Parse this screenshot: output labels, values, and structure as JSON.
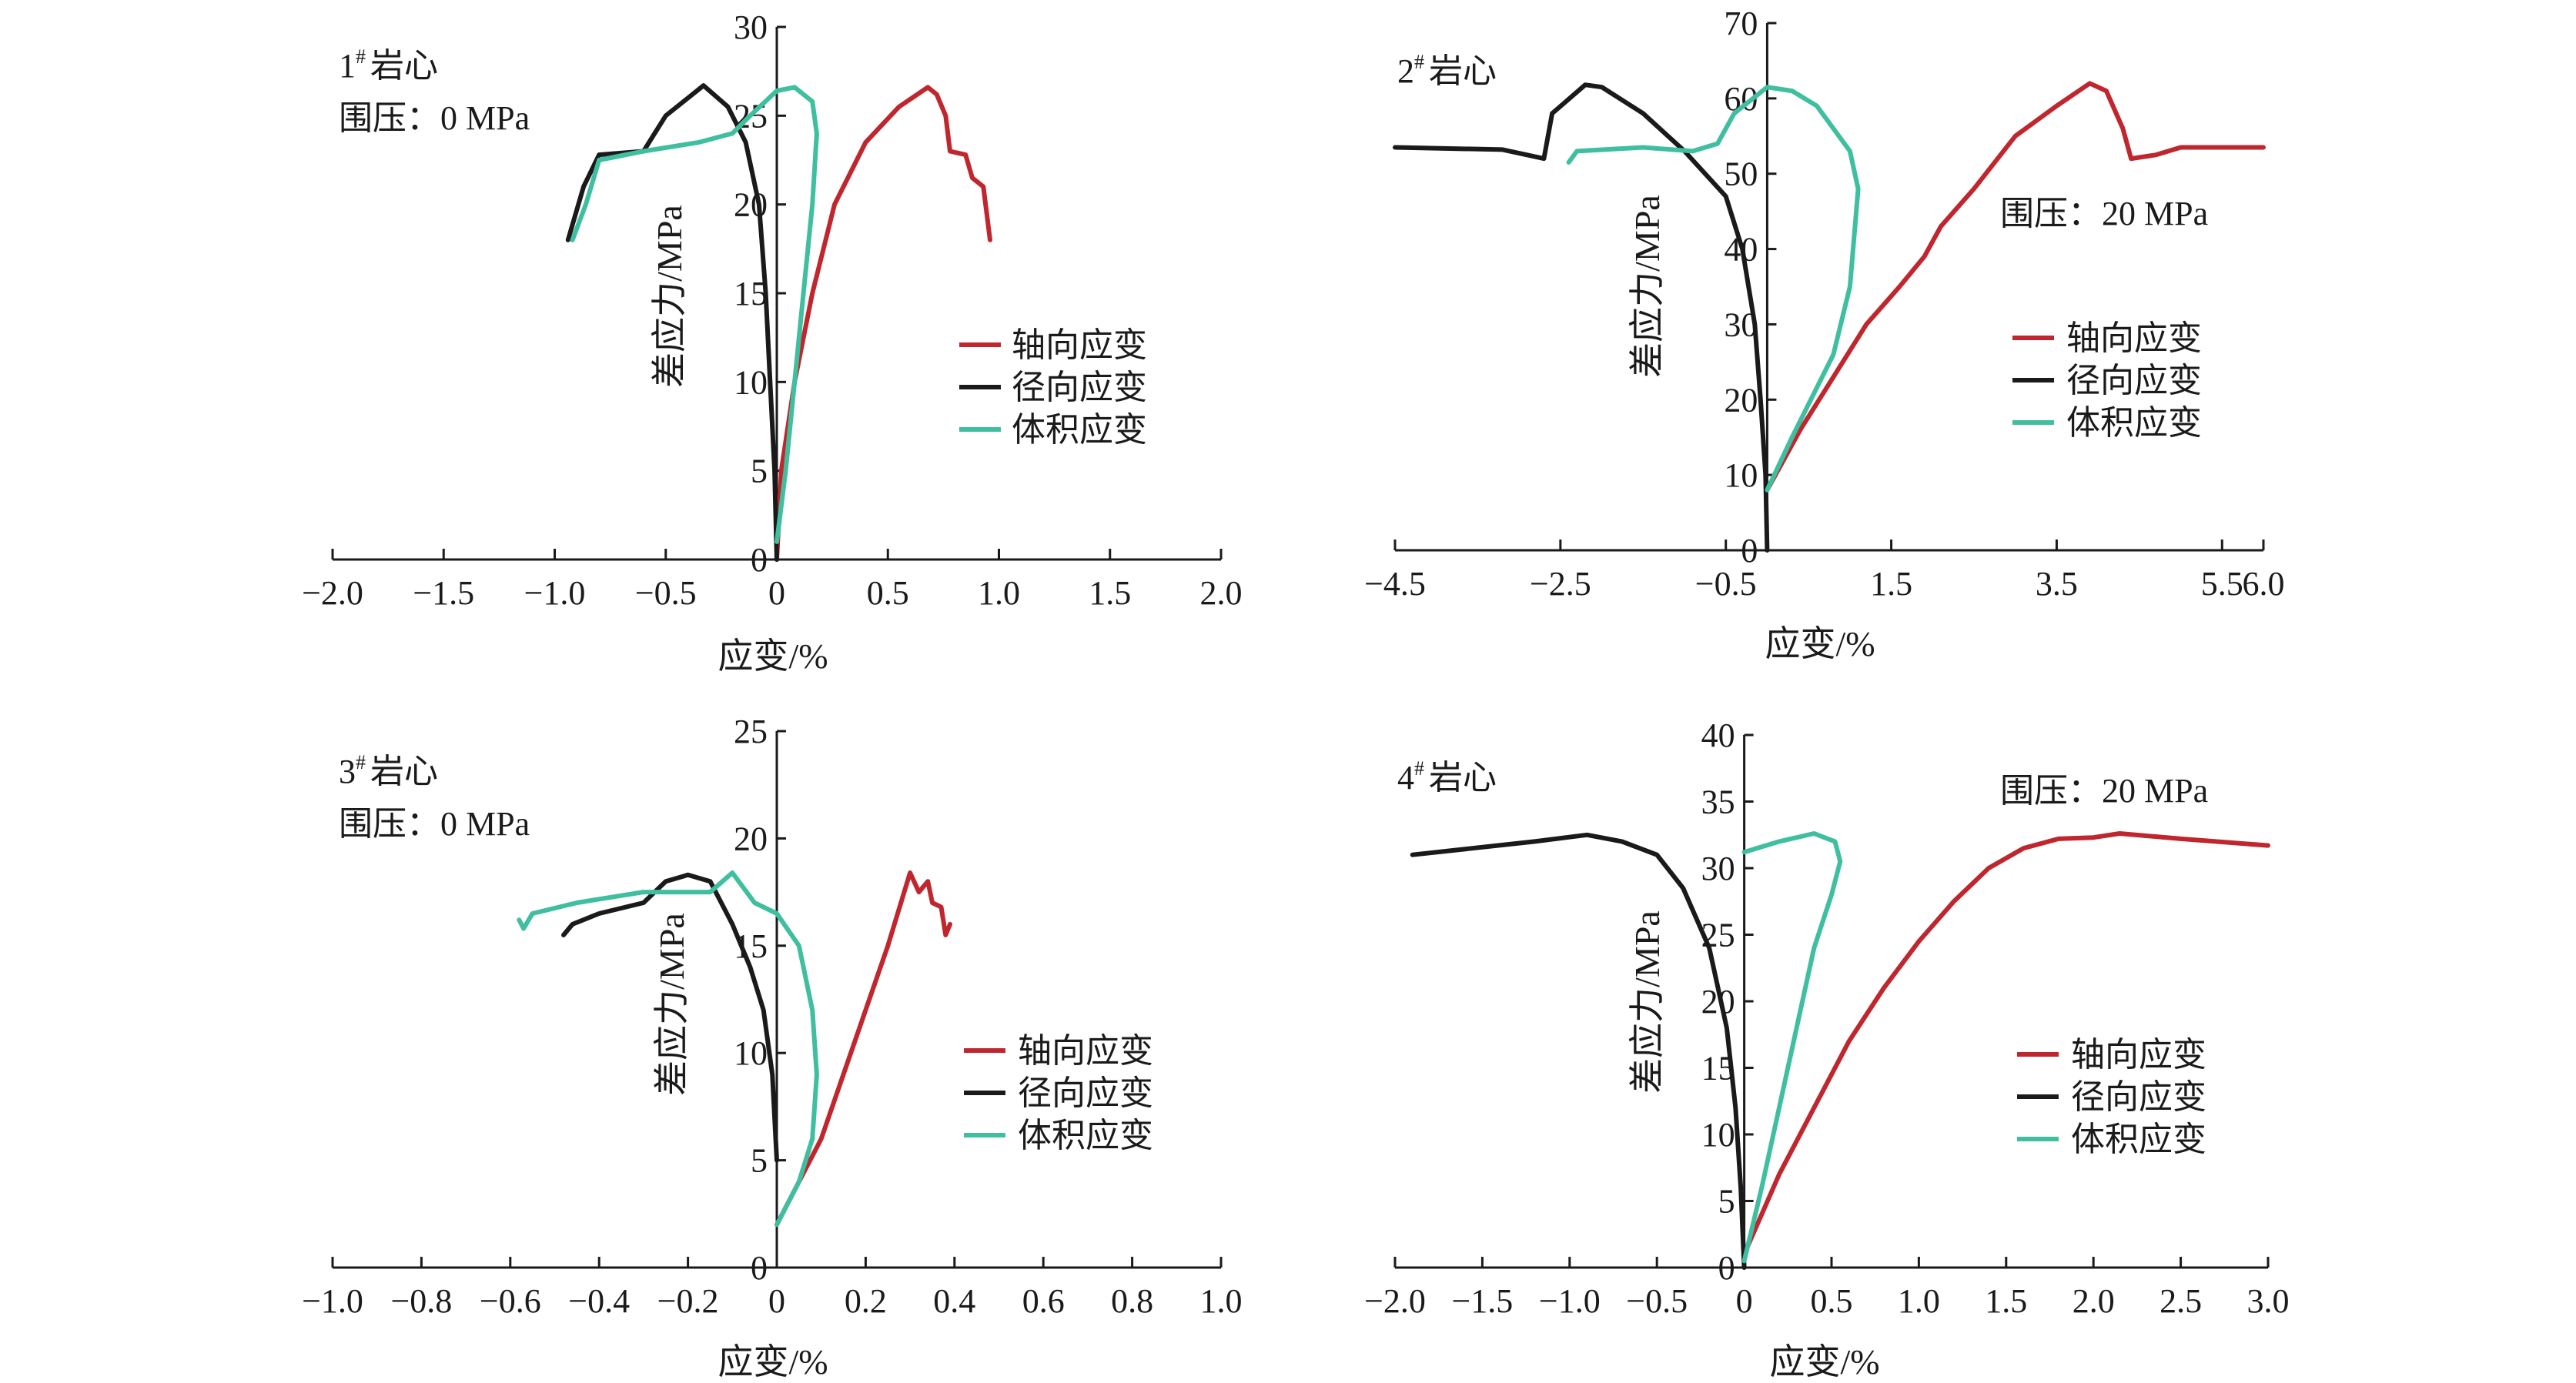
{
  "colors": {
    "axial": "#c0262d",
    "radial": "#1a1a1a",
    "volumetric": "#3fbfa0",
    "axis": "#1a1a1a"
  },
  "chart_data": [
    {
      "type": "line",
      "id": "c1",
      "sample_label": "1",
      "sample_suffix": "岩心",
      "sample_sup": "#",
      "confining_label": "围压：0 MPa",
      "xlabel": "应变/%",
      "ylabel": "差应力/MPa",
      "xlim": [
        -2.0,
        2.0
      ],
      "ylim": [
        0,
        30
      ],
      "xticks": [
        -2.0,
        -1.5,
        -1.0,
        -0.5,
        0,
        0.5,
        1.0,
        1.5,
        2.0
      ],
      "xtick_labels": [
        "−2.0",
        "−1.5",
        "−1.0",
        "−0.5",
        "0",
        "0.5",
        "1.0",
        "1.5",
        "2.0"
      ],
      "yticks": [
        0,
        5,
        10,
        15,
        20,
        25,
        30
      ],
      "ytick_labels": [
        "0",
        "5",
        "10",
        "15",
        "20",
        "25",
        "30"
      ],
      "legend": [
        "轴向应变",
        "径向应变",
        "体积应变"
      ],
      "series": [
        {
          "name": "轴向应变",
          "key": "axial",
          "points": [
            [
              0,
              0
            ],
            [
              0.02,
              5
            ],
            [
              0.08,
              10
            ],
            [
              0.16,
              15
            ],
            [
              0.26,
              20
            ],
            [
              0.4,
              23.5
            ],
            [
              0.55,
              25.5
            ],
            [
              0.68,
              26.6
            ],
            [
              0.72,
              26.2
            ],
            [
              0.76,
              25.0
            ],
            [
              0.78,
              23.0
            ],
            [
              0.85,
              22.8
            ],
            [
              0.88,
              21.5
            ],
            [
              0.93,
              21.0
            ],
            [
              0.96,
              18.0
            ]
          ]
        },
        {
          "name": "径向应变",
          "key": "radial",
          "points": [
            [
              0,
              0
            ],
            [
              -0.01,
              5
            ],
            [
              -0.03,
              10
            ],
            [
              -0.05,
              15
            ],
            [
              -0.08,
              20
            ],
            [
              -0.14,
              23.5
            ],
            [
              -0.22,
              25.5
            ],
            [
              -0.33,
              26.7
            ],
            [
              -0.4,
              26.0
            ],
            [
              -0.5,
              25.0
            ],
            [
              -0.55,
              24.0
            ],
            [
              -0.6,
              23.0
            ],
            [
              -0.8,
              22.8
            ],
            [
              -0.87,
              21.0
            ],
            [
              -0.94,
              18.0
            ]
          ]
        },
        {
          "name": "体积应变",
          "key": "volumetric",
          "points": [
            [
              0,
              1
            ],
            [
              0.04,
              5
            ],
            [
              0.08,
              10
            ],
            [
              0.12,
              15
            ],
            [
              0.16,
              20
            ],
            [
              0.18,
              24.0
            ],
            [
              0.16,
              25.8
            ],
            [
              0.08,
              26.6
            ],
            [
              0.0,
              26.4
            ],
            [
              -0.12,
              25.0
            ],
            [
              -0.2,
              24.0
            ],
            [
              -0.35,
              23.5
            ],
            [
              -0.6,
              23.0
            ],
            [
              -0.8,
              22.5
            ],
            [
              -0.86,
              20.0
            ],
            [
              -0.92,
              18.0
            ]
          ]
        }
      ]
    },
    {
      "type": "line",
      "id": "c2",
      "sample_label": "2",
      "sample_suffix": "岩心",
      "sample_sup": "#",
      "confining_label": "围压：20 MPa",
      "xlabel": "应变/%",
      "ylabel": "差应力/MPa",
      "xlim": [
        -4.5,
        6.0
      ],
      "ylim": [
        0,
        70
      ],
      "xticks": [
        -4.5,
        -2.5,
        -0.5,
        1.5,
        3.5,
        5.5,
        6.0
      ],
      "xtick_labels": [
        "−4.5",
        "−2.5",
        "−0.5",
        "1.5",
        "3.5",
        "5.5",
        "6.0"
      ],
      "yticks": [
        0,
        10,
        20,
        30,
        40,
        50,
        60,
        70
      ],
      "ytick_labels": [
        "0",
        "10",
        "20",
        "30",
        "40",
        "50",
        "60",
        "70"
      ],
      "legend": [
        "轴向应变",
        "径向应变",
        "体积应变"
      ],
      "series": [
        {
          "name": "轴向应变",
          "key": "axial",
          "points": [
            [
              0,
              8
            ],
            [
              0.4,
              16
            ],
            [
              0.8,
              23
            ],
            [
              1.2,
              30
            ],
            [
              1.6,
              35
            ],
            [
              1.9,
              39
            ],
            [
              2.1,
              43
            ],
            [
              2.5,
              48
            ],
            [
              3.0,
              55
            ],
            [
              3.5,
              59
            ],
            [
              3.9,
              62
            ],
            [
              4.1,
              61
            ],
            [
              4.3,
              56
            ],
            [
              4.4,
              52
            ],
            [
              4.7,
              52.5
            ],
            [
              5.0,
              53.5
            ],
            [
              6.0,
              53.5
            ]
          ]
        },
        {
          "name": "径向应变",
          "key": "radial",
          "points": [
            [
              0,
              0
            ],
            [
              -0.02,
              10
            ],
            [
              -0.08,
              20
            ],
            [
              -0.15,
              30
            ],
            [
              -0.3,
              40
            ],
            [
              -0.5,
              47
            ],
            [
              -1.0,
              53
            ],
            [
              -1.5,
              58
            ],
            [
              -2.0,
              61.5
            ],
            [
              -2.2,
              61.8
            ],
            [
              -2.6,
              58
            ],
            [
              -2.7,
              52
            ],
            [
              -3.2,
              53.2
            ],
            [
              -4.5,
              53.5
            ]
          ]
        },
        {
          "name": "体积应变",
          "key": "volumetric",
          "points": [
            [
              0,
              8
            ],
            [
              0.3,
              15
            ],
            [
              0.8,
              26
            ],
            [
              1.0,
              35
            ],
            [
              1.1,
              48
            ],
            [
              1.0,
              53
            ],
            [
              0.6,
              59
            ],
            [
              0.3,
              61
            ],
            [
              0.0,
              61.5
            ],
            [
              -0.4,
              58
            ],
            [
              -0.6,
              54
            ],
            [
              -0.9,
              53
            ],
            [
              -1.5,
              53.5
            ],
            [
              -2.3,
              53.0
            ],
            [
              -2.4,
              51.5
            ]
          ]
        }
      ]
    },
    {
      "type": "line",
      "id": "c3",
      "sample_label": "3",
      "sample_suffix": "岩心",
      "sample_sup": "#",
      "confining_label": "围压：0 MPa",
      "xlabel": "应变/%",
      "ylabel": "差应力/MPa",
      "xlim": [
        -1.0,
        1.0
      ],
      "ylim": [
        0,
        25
      ],
      "xticks": [
        -1.0,
        -0.8,
        -0.6,
        -0.4,
        -0.2,
        0,
        0.2,
        0.4,
        0.6,
        0.8,
        1.0
      ],
      "xtick_labels": [
        "−1.0",
        "−0.8",
        "−0.6",
        "−0.4",
        "−0.2",
        "0",
        "0.2",
        "0.4",
        "0.6",
        "0.8",
        "1.0"
      ],
      "yticks": [
        0,
        5,
        10,
        15,
        20,
        25
      ],
      "ytick_labels": [
        "0",
        "5",
        "10",
        "15",
        "20",
        "25"
      ],
      "legend": [
        "轴向应变",
        "径向应变",
        "体积应变"
      ],
      "series": [
        {
          "name": "轴向应变",
          "key": "axial",
          "points": [
            [
              0,
              2
            ],
            [
              0.05,
              4
            ],
            [
              0.1,
              6
            ],
            [
              0.15,
              9
            ],
            [
              0.2,
              12
            ],
            [
              0.25,
              15
            ],
            [
              0.3,
              18.4
            ],
            [
              0.32,
              17.5
            ],
            [
              0.34,
              18.0
            ],
            [
              0.35,
              17.0
            ],
            [
              0.37,
              16.8
            ],
            [
              0.38,
              15.5
            ],
            [
              0.39,
              16.0
            ]
          ]
        },
        {
          "name": "径向应变",
          "key": "radial",
          "points": [
            [
              0,
              5
            ],
            [
              -0.01,
              9
            ],
            [
              -0.03,
              12
            ],
            [
              -0.06,
              14
            ],
            [
              -0.1,
              16
            ],
            [
              -0.15,
              18.0
            ],
            [
              -0.2,
              18.3
            ],
            [
              -0.25,
              18.0
            ],
            [
              -0.3,
              17.0
            ],
            [
              -0.4,
              16.5
            ],
            [
              -0.46,
              16.0
            ],
            [
              -0.48,
              15.5
            ]
          ]
        },
        {
          "name": "体积应变",
          "key": "volumetric",
          "points": [
            [
              0,
              2
            ],
            [
              0.05,
              4
            ],
            [
              0.08,
              6
            ],
            [
              0.09,
              9
            ],
            [
              0.08,
              12
            ],
            [
              0.05,
              15
            ],
            [
              0.0,
              16.5
            ],
            [
              -0.05,
              17.0
            ],
            [
              -0.1,
              18.4
            ],
            [
              -0.15,
              17.5
            ],
            [
              -0.3,
              17.5
            ],
            [
              -0.45,
              17.0
            ],
            [
              -0.55,
              16.5
            ],
            [
              -0.57,
              15.8
            ],
            [
              -0.58,
              16.2
            ]
          ]
        }
      ]
    },
    {
      "type": "line",
      "id": "c4",
      "sample_label": "4",
      "sample_suffix": "岩心",
      "sample_sup": "#",
      "confining_label": "围压：20 MPa",
      "xlabel": "应变/%",
      "ylabel": "差应力/MPa",
      "xlim": [
        -2.0,
        3.0
      ],
      "ylim": [
        0,
        40
      ],
      "xticks": [
        -2.0,
        -1.5,
        -1.0,
        -0.5,
        0,
        0.5,
        1.0,
        1.5,
        2.0,
        2.5,
        3.0
      ],
      "xtick_labels": [
        "−2.0",
        "−1.5",
        "−1.0",
        "−0.5",
        "0",
        "0.5",
        "1.0",
        "1.5",
        "2.0",
        "2.5",
        "3.0"
      ],
      "yticks": [
        0,
        5,
        10,
        15,
        20,
        25,
        30,
        35,
        40
      ],
      "ytick_labels": [
        "0",
        "5",
        "10",
        "15",
        "20",
        "25",
        "30",
        "35",
        "40"
      ],
      "legend": [
        "轴向应变",
        "径向应变",
        "体积应变"
      ],
      "series": [
        {
          "name": "轴向应变",
          "key": "axial",
          "points": [
            [
              0,
              1
            ],
            [
              0.2,
              7
            ],
            [
              0.4,
              12
            ],
            [
              0.6,
              17
            ],
            [
              0.8,
              21
            ],
            [
              1.0,
              24.5
            ],
            [
              1.2,
              27.5
            ],
            [
              1.4,
              30
            ],
            [
              1.6,
              31.5
            ],
            [
              1.8,
              32.2
            ],
            [
              2.0,
              32.3
            ],
            [
              2.15,
              32.6
            ],
            [
              2.5,
              32.2
            ],
            [
              3.0,
              31.7
            ]
          ]
        },
        {
          "name": "径向应变",
          "key": "radial",
          "points": [
            [
              0,
              0
            ],
            [
              -0.02,
              6
            ],
            [
              -0.05,
              12
            ],
            [
              -0.1,
              18
            ],
            [
              -0.2,
              24
            ],
            [
              -0.35,
              28.5
            ],
            [
              -0.5,
              31
            ],
            [
              -0.7,
              32
            ],
            [
              -0.9,
              32.5
            ],
            [
              -1.2,
              32.0
            ],
            [
              -1.9,
              31.0
            ]
          ]
        },
        {
          "name": "体积应变",
          "key": "volumetric",
          "points": [
            [
              0,
              0.5
            ],
            [
              0.1,
              6
            ],
            [
              0.2,
              12
            ],
            [
              0.3,
              18
            ],
            [
              0.4,
              24
            ],
            [
              0.5,
              28
            ],
            [
              0.55,
              30.5
            ],
            [
              0.52,
              32
            ],
            [
              0.4,
              32.6
            ],
            [
              0.2,
              32.0
            ],
            [
              0.0,
              31.2
            ]
          ]
        }
      ]
    }
  ]
}
